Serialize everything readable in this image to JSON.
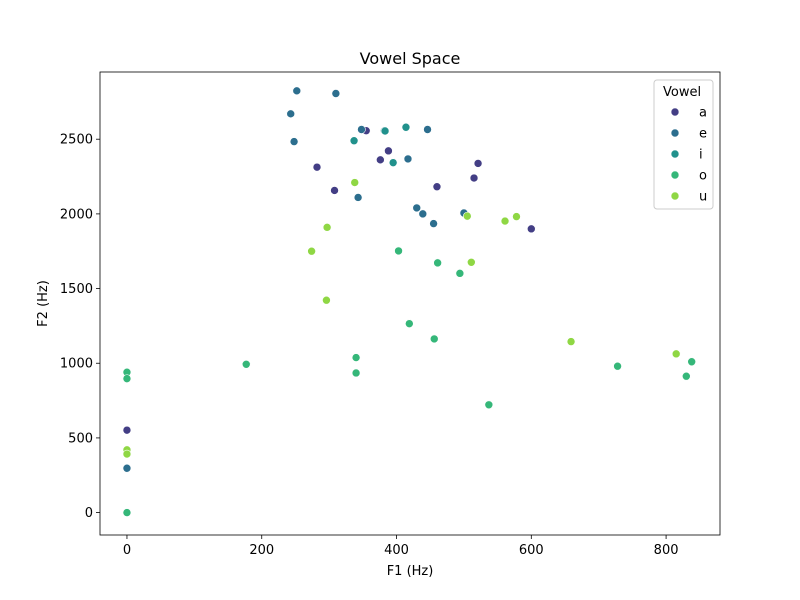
{
  "chart_data": {
    "type": "scatter",
    "title": "Vowel Space",
    "xlabel": "F1 (Hz)",
    "ylabel": "F2 (Hz)",
    "xlim": [
      -40,
      880
    ],
    "ylim": [
      -150,
      2950
    ],
    "xticks": [
      0,
      200,
      400,
      600,
      800
    ],
    "yticks": [
      0,
      500,
      1000,
      1500,
      2000,
      2500
    ],
    "grid": false,
    "legend": {
      "title": "Vowel",
      "placement": "top-right"
    },
    "series": [
      {
        "name": "a",
        "color": "#433e85",
        "points": [
          [
            0,
            552
          ],
          [
            282,
            2313
          ],
          [
            308,
            2157
          ],
          [
            355,
            2557
          ],
          [
            376,
            2362
          ],
          [
            388,
            2422
          ],
          [
            460,
            2182
          ],
          [
            515,
            2240
          ],
          [
            521,
            2338
          ],
          [
            600,
            1900
          ]
        ]
      },
      {
        "name": "e",
        "color": "#2c6e8e",
        "points": [
          [
            0,
            297
          ],
          [
            243,
            2670
          ],
          [
            248,
            2484
          ],
          [
            252,
            2824
          ],
          [
            310,
            2806
          ],
          [
            343,
            2110
          ],
          [
            348,
            2565
          ],
          [
            382,
            2557
          ],
          [
            417,
            2368
          ],
          [
            430,
            2040
          ],
          [
            439,
            2000
          ],
          [
            446,
            2565
          ],
          [
            455,
            1935
          ],
          [
            500,
            2006
          ]
        ]
      },
      {
        "name": "i",
        "color": "#21918c",
        "points": [
          [
            337,
            2490
          ],
          [
            395,
            2343
          ],
          [
            383,
            2555
          ],
          [
            414,
            2580
          ]
        ]
      },
      {
        "name": "o",
        "color": "#35b779",
        "points": [
          [
            0,
            940
          ],
          [
            0,
            897
          ],
          [
            0,
            0
          ],
          [
            177,
            993
          ],
          [
            340,
            1038
          ],
          [
            340,
            935
          ],
          [
            403,
            1752
          ],
          [
            419,
            1265
          ],
          [
            456,
            1163
          ],
          [
            461,
            1672
          ],
          [
            494,
            1602
          ],
          [
            537,
            722
          ],
          [
            728,
            980
          ],
          [
            830,
            913
          ],
          [
            838,
            1010
          ]
        ]
      },
      {
        "name": "u",
        "color": "#8fd744",
        "points": [
          [
            0,
            420
          ],
          [
            0,
            392
          ],
          [
            274,
            1750
          ],
          [
            297,
            1910
          ],
          [
            296,
            1422
          ],
          [
            338,
            2210
          ],
          [
            505,
            1985
          ],
          [
            511,
            1676
          ],
          [
            561,
            1952
          ],
          [
            578,
            1982
          ],
          [
            659,
            1145
          ],
          [
            815,
            1063
          ]
        ]
      }
    ]
  }
}
